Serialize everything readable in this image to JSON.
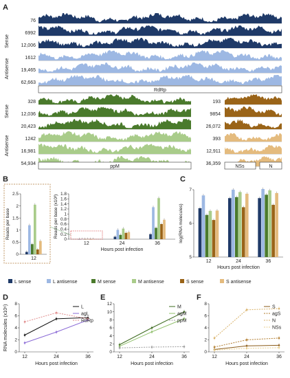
{
  "colors": {
    "L_sense": "#1f3a68",
    "L_antisense": "#9db8e3",
    "M_sense": "#4a7a2c",
    "M_antisense": "#a9cc8a",
    "S_sense": "#9a6418",
    "S_antisense": "#e4bb7e",
    "red": "#d13a3a",
    "dark": "#333333"
  },
  "panelA": {
    "letter": "A",
    "L": {
      "sense_label": "Sense",
      "antisense_label": "Antisense",
      "sense_values": [
        "76",
        "6992",
        "12,006"
      ],
      "antisense_values": [
        "1612",
        "19,465",
        "62,663"
      ],
      "gene": "RdRp"
    },
    "M": {
      "sense_label": "Sense",
      "antisense_label": "Antisense",
      "sense_values": [
        "328",
        "12,036",
        "20,423"
      ],
      "antisense_values": [
        "1242",
        "16,981",
        "54,934"
      ],
      "gene": "ppM"
    },
    "S": {
      "sense_values": [
        "193",
        "9854",
        "26,072"
      ],
      "antisense_values": [
        "393",
        "12,911",
        "36,359"
      ],
      "genes": [
        "NSs",
        "N"
      ]
    }
  },
  "panelB": {
    "letter": "B"
  },
  "panelC": {
    "letter": "C"
  },
  "panelD": {
    "letter": "D"
  },
  "panelE": {
    "letter": "E"
  },
  "panelF": {
    "letter": "F"
  },
  "legend": [
    "L sense",
    "L antisense",
    "M sense",
    "M antisense",
    "S sense",
    "S antisense"
  ],
  "chart_data": [
    {
      "id": "B-inset",
      "type": "bar",
      "ylabel": "Reads per base",
      "ylim": [
        0,
        2.5
      ],
      "yticks": [
        "0",
        "0.5",
        "1",
        "1.5",
        "2",
        "2.5"
      ],
      "categories": [
        "12"
      ],
      "series": [
        {
          "name": "L sense",
          "values": [
            0.1
          ]
        },
        {
          "name": "L antisense",
          "values": [
            1.2
          ]
        },
        {
          "name": "M sense",
          "values": [
            0.42
          ]
        },
        {
          "name": "M antisense",
          "values": [
            2.05
          ]
        },
        {
          "name": "S sense",
          "values": [
            0.2
          ]
        },
        {
          "name": "S antisense",
          "values": [
            0.55
          ]
        }
      ]
    },
    {
      "id": "B-main",
      "type": "bar",
      "ylabel": "Reads per base (x10³)",
      "xlabel": "Hours post infection",
      "ylim": [
        0,
        1.8
      ],
      "yticks": [
        "0",
        "0.2",
        "0.4",
        "0.6",
        "0.8",
        "1",
        "1.2",
        "1.4",
        "1.6",
        "1.8"
      ],
      "categories": [
        "12",
        "24",
        "36"
      ],
      "series": [
        {
          "name": "L sense",
          "values": [
            0.0,
            0.1,
            0.2
          ]
        },
        {
          "name": "L antisense",
          "values": [
            0.002,
            0.37,
            1.27
          ]
        },
        {
          "name": "M sense",
          "values": [
            0.001,
            0.17,
            0.45
          ]
        },
        {
          "name": "M antisense",
          "values": [
            0.003,
            0.42,
            1.63
          ]
        },
        {
          "name": "S sense",
          "values": [
            0.001,
            0.25,
            0.6
          ]
        },
        {
          "name": "S antisense",
          "values": [
            0.001,
            0.28,
            0.77
          ]
        }
      ]
    },
    {
      "id": "C",
      "type": "bar",
      "ylabel": "log(RNA molecules)",
      "xlabel": "Hours post infection",
      "ylim": [
        5,
        7
      ],
      "yticks": [
        "5",
        "6",
        "7"
      ],
      "categories": [
        "12",
        "24",
        "36"
      ],
      "series": [
        {
          "name": "L sense",
          "values": [
            6.45,
            6.75,
            6.75
          ]
        },
        {
          "name": "L antisense",
          "values": [
            6.83,
            7.0,
            7.02
          ]
        },
        {
          "name": "M sense",
          "values": [
            6.25,
            6.78,
            6.85
          ]
        },
        {
          "name": "M antisense",
          "values": [
            6.37,
            6.93,
            6.98
          ]
        },
        {
          "name": "S sense",
          "values": [
            6.1,
            6.48,
            6.55
          ]
        },
        {
          "name": "S antisense",
          "values": [
            6.38,
            6.88,
            6.9
          ]
        }
      ]
    },
    {
      "id": "D",
      "type": "line",
      "ylabel": "RNA molecules (x10⁶)",
      "xlabel": "Hours post infection",
      "ylim": [
        0,
        8
      ],
      "yticks": [
        "0",
        "2",
        "4",
        "6",
        "8"
      ],
      "x": [
        "12",
        "24",
        "36"
      ],
      "series": [
        {
          "name": "L",
          "values": [
            2.8,
            5.5,
            5.7
          ],
          "dash": false
        },
        {
          "name": "agL",
          "values": [
            1.5,
            3.3,
            5.3
          ],
          "dash": false
        },
        {
          "name": "RdRp",
          "values": [
            5.0,
            6.5,
            5.5
          ],
          "dash": true
        }
      ]
    },
    {
      "id": "E",
      "type": "line",
      "xlabel": "Hours post infection",
      "ylim": [
        0,
        12
      ],
      "yticks": [
        "0",
        "2",
        "4",
        "6",
        "8",
        "10",
        "12"
      ],
      "x": [
        "12",
        "24",
        "36"
      ],
      "series": [
        {
          "name": "M",
          "values": [
            1.8,
            6.0,
            10.0
          ],
          "dash": false
        },
        {
          "name": "agM",
          "values": [
            1.4,
            5.0,
            8.3
          ],
          "dash": false
        },
        {
          "name": "ppM",
          "values": [
            1.0,
            1.2,
            1.3
          ],
          "dash": true
        }
      ]
    },
    {
      "id": "F",
      "type": "line",
      "xlabel": "Hours post infection",
      "ylim": [
        0,
        8
      ],
      "yticks": [
        "0",
        "2",
        "4",
        "6",
        "8"
      ],
      "x": [
        "12",
        "24",
        "36"
      ],
      "series": [
        {
          "name": "S",
          "values": [
            0.4,
            1.0,
            1.1
          ],
          "dash": false
        },
        {
          "name": "agS",
          "values": [
            0.8,
            2.0,
            2.3
          ],
          "dash": true
        },
        {
          "name": "N",
          "values": [
            2.3,
            7.0,
            7.2
          ],
          "dash": true
        },
        {
          "name": "NSs",
          "values": [
            0.3,
            0.6,
            0.7
          ],
          "dash": true
        }
      ]
    }
  ]
}
